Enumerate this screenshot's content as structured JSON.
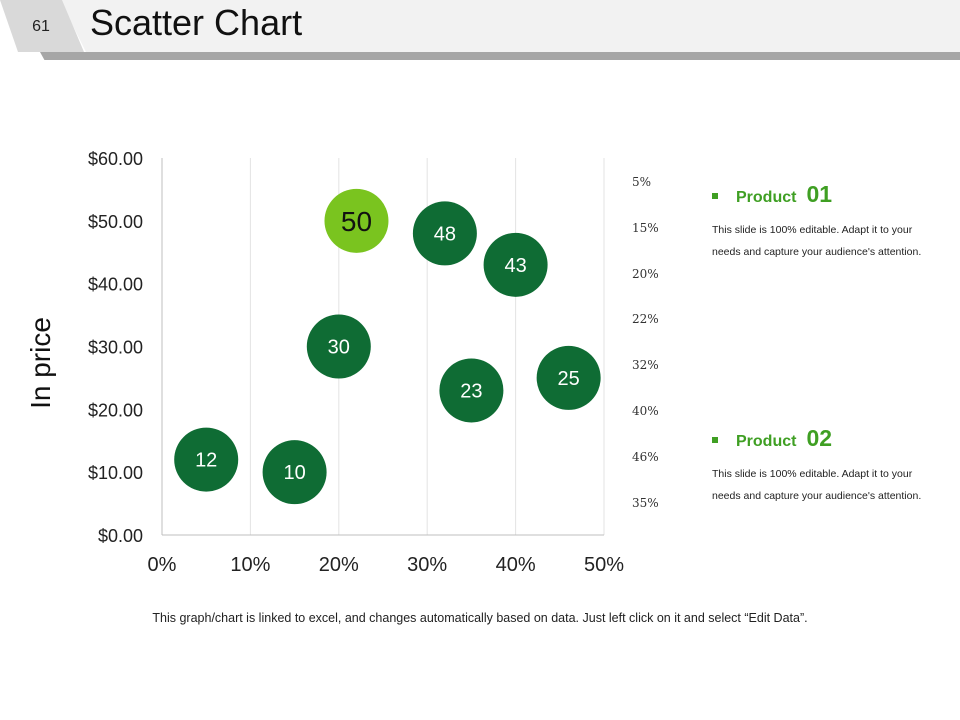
{
  "slide": {
    "number": "61",
    "title": "Scatter Chart"
  },
  "colors": {
    "bubble_dark": "#0f6c34",
    "bubble_light": "#7ac41f",
    "legend_green": "#3f9f23",
    "header_gray": "#a6a6a6"
  },
  "chart_data": {
    "type": "scatter",
    "title": "",
    "xlabel": "",
    "ylabel": "In price",
    "xlim": [
      0,
      0.5
    ],
    "ylim": [
      0,
      60
    ],
    "x_ticks": [
      0,
      0.1,
      0.2,
      0.3,
      0.4,
      0.5
    ],
    "x_tick_labels": [
      "0%",
      "10%",
      "20%",
      "30%",
      "40%",
      "50%"
    ],
    "y_ticks": [
      0,
      10,
      20,
      30,
      40,
      50,
      60
    ],
    "y_tick_labels": [
      "$0.00",
      "$10.00",
      "$20.00",
      "$30.00",
      "$40.00",
      "$50.00",
      "$60.00"
    ],
    "grid": "vertical",
    "points": [
      {
        "x": 0.05,
        "y": 12,
        "label": "12",
        "highlight": false
      },
      {
        "x": 0.15,
        "y": 10,
        "label": "10",
        "highlight": false
      },
      {
        "x": 0.2,
        "y": 30,
        "label": "30",
        "highlight": false
      },
      {
        "x": 0.22,
        "y": 50,
        "label": "50",
        "highlight": true
      },
      {
        "x": 0.32,
        "y": 48,
        "label": "48",
        "highlight": false
      },
      {
        "x": 0.35,
        "y": 23,
        "label": "23",
        "highlight": false
      },
      {
        "x": 0.4,
        "y": 43,
        "label": "43",
        "highlight": false
      },
      {
        "x": 0.46,
        "y": 25,
        "label": "25",
        "highlight": false
      }
    ]
  },
  "side_percent_labels": [
    "5%",
    "15%",
    "20%",
    "22%",
    "32%",
    "40%",
    "46%",
    "35%"
  ],
  "legend": [
    {
      "name": "Product",
      "number": "01",
      "description": "This slide is 100% editable. Adapt it to your needs and capture your audience's attention."
    },
    {
      "name": "Product",
      "number": "02",
      "description": "This slide is 100% editable. Adapt it to your needs and capture your audience's attention."
    }
  ],
  "footnote": "This graph/chart is linked to excel, and changes automatically based on data. Just left click on it and select “Edit Data”."
}
